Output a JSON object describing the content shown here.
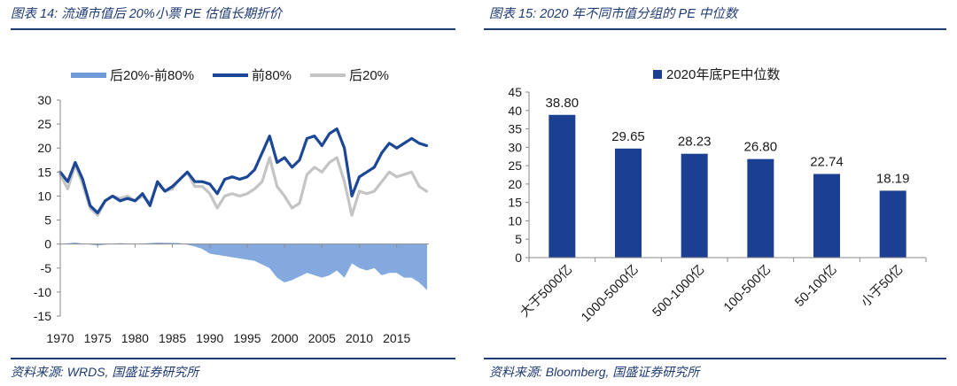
{
  "left": {
    "title": "图表 14:  流通市值后 20%小票 PE 估值长期折价",
    "source": "资料来源:  WRDS,  国盛证券研究所"
  },
  "right": {
    "title": "图表 15:  2020 年不同市值分组的 PE 中位数",
    "source": "资料来源:  Bloomberg,  国盛证券研究所"
  },
  "colors": {
    "header": "#1f3b73",
    "spread": "#6f9ad8",
    "top80": "#1b4796",
    "bottom20": "#c4c4c4",
    "bar": "#1b3f91"
  },
  "chart_data": [
    {
      "type": "line",
      "ylim": [
        -15,
        30
      ],
      "yticks": [
        "30",
        "25",
        "20",
        "15",
        "10",
        "5",
        "0",
        "-5",
        "-10",
        "-15"
      ],
      "xlim": [
        1970,
        2019.3
      ],
      "xticks": [
        "1970",
        "1975",
        "1980",
        "1985",
        "1990",
        "1995",
        "2000",
        "2005",
        "2010",
        "2015"
      ],
      "legend": "top",
      "series": [
        {
          "name": "后20%-前80%",
          "kind": "bar",
          "points": [
            [
              1970,
              0
            ],
            [
              1972,
              0.3
            ],
            [
              1975,
              -0.3
            ],
            [
              1978,
              0.2
            ],
            [
              1980,
              0
            ],
            [
              1983,
              0.3
            ],
            [
              1986,
              0.2
            ],
            [
              1988,
              -0.5
            ],
            [
              1989,
              -1
            ],
            [
              1990,
              -2
            ],
            [
              1992,
              -2.5
            ],
            [
              1994,
              -3
            ],
            [
              1996,
              -3.5
            ],
            [
              1998,
              -5
            ],
            [
              1999,
              -7
            ],
            [
              2000,
              -8
            ],
            [
              2001,
              -7.5
            ],
            [
              2003,
              -6
            ],
            [
              2005,
              -7
            ],
            [
              2006,
              -6.5
            ],
            [
              2007,
              -5.5
            ],
            [
              2008,
              -7
            ],
            [
              2009,
              -4
            ],
            [
              2010,
              -5
            ],
            [
              2011,
              -5.5
            ],
            [
              2012,
              -5
            ],
            [
              2013,
              -6.5
            ],
            [
              2014,
              -6
            ],
            [
              2015,
              -6
            ],
            [
              2016,
              -7
            ],
            [
              2017,
              -7
            ],
            [
              2018,
              -8
            ],
            [
              2019,
              -9.5
            ]
          ]
        },
        {
          "name": "前80%",
          "kind": "line",
          "points": [
            [
              1970,
              15
            ],
            [
              1971,
              13
            ],
            [
              1972,
              17
            ],
            [
              1973,
              13.5
            ],
            [
              1974,
              8
            ],
            [
              1975,
              6.5
            ],
            [
              1976,
              9
            ],
            [
              1977,
              10
            ],
            [
              1978,
              9
            ],
            [
              1979,
              9.5
            ],
            [
              1980,
              9
            ],
            [
              1981,
              10.5
            ],
            [
              1982,
              8
            ],
            [
              1983,
              13
            ],
            [
              1984,
              11
            ],
            [
              1985,
              12
            ],
            [
              1986,
              13.5
            ],
            [
              1987,
              15
            ],
            [
              1988,
              13
            ],
            [
              1989,
              13
            ],
            [
              1990,
              12.5
            ],
            [
              1991,
              10.5
            ],
            [
              1992,
              13.5
            ],
            [
              1993,
              14
            ],
            [
              1994,
              13.5
            ],
            [
              1995,
              14
            ],
            [
              1996,
              15.5
            ],
            [
              1997,
              19
            ],
            [
              1998,
              22.5
            ],
            [
              1999,
              17
            ],
            [
              2000,
              18
            ],
            [
              2001,
              16
            ],
            [
              2002,
              17.5
            ],
            [
              2003,
              22
            ],
            [
              2004,
              22.5
            ],
            [
              2005,
              20.5
            ],
            [
              2006,
              23
            ],
            [
              2007,
              24
            ],
            [
              2008,
              20
            ],
            [
              2009,
              10
            ],
            [
              2010,
              14
            ],
            [
              2011,
              15
            ],
            [
              2012,
              16
            ],
            [
              2013,
              19
            ],
            [
              2014,
              21
            ],
            [
              2015,
              20
            ],
            [
              2016,
              21
            ],
            [
              2017,
              22
            ],
            [
              2018,
              21
            ],
            [
              2019,
              20.5
            ]
          ]
        },
        {
          "name": "后20%",
          "kind": "line",
          "points": [
            [
              1970,
              14.5
            ],
            [
              1971,
              11.5
            ],
            [
              1972,
              16.5
            ],
            [
              1973,
              12.5
            ],
            [
              1974,
              7.5
            ],
            [
              1975,
              6
            ],
            [
              1976,
              9
            ],
            [
              1977,
              10
            ],
            [
              1978,
              9.5
            ],
            [
              1979,
              10
            ],
            [
              1980,
              9
            ],
            [
              1981,
              10
            ],
            [
              1982,
              8.5
            ],
            [
              1983,
              12.5
            ],
            [
              1984,
              11
            ],
            [
              1985,
              11.5
            ],
            [
              1986,
              13.5
            ],
            [
              1987,
              15
            ],
            [
              1988,
              12
            ],
            [
              1989,
              12
            ],
            [
              1990,
              10.5
            ],
            [
              1991,
              7.5
            ],
            [
              1992,
              10
            ],
            [
              1993,
              10.5
            ],
            [
              1994,
              10
            ],
            [
              1995,
              10.5
            ],
            [
              1996,
              11.5
            ],
            [
              1997,
              13
            ],
            [
              1998,
              18
            ],
            [
              1999,
              12
            ],
            [
              2000,
              10
            ],
            [
              2001,
              7.5
            ],
            [
              2002,
              8.5
            ],
            [
              2003,
              14.5
            ],
            [
              2004,
              16
            ],
            [
              2005,
              15
            ],
            [
              2006,
              17
            ],
            [
              2007,
              18
            ],
            [
              2008,
              13
            ],
            [
              2009,
              6
            ],
            [
              2010,
              11
            ],
            [
              2011,
              10.5
            ],
            [
              2012,
              11
            ],
            [
              2013,
              13
            ],
            [
              2014,
              15
            ],
            [
              2015,
              14
            ],
            [
              2016,
              14.5
            ],
            [
              2017,
              15
            ],
            [
              2018,
              12
            ],
            [
              2019,
              11
            ]
          ]
        }
      ]
    },
    {
      "type": "bar",
      "ylim": [
        0,
        45
      ],
      "yticks": [
        "45",
        "40",
        "35",
        "30",
        "25",
        "20",
        "15",
        "10",
        "5",
        "0"
      ],
      "legend": "top",
      "categories": [
        "大于5000亿",
        "1000-5000亿",
        "500-1000亿",
        "100-500亿",
        "50-100亿",
        "小于50亿"
      ],
      "series": [
        {
          "name": "2020年底PE中位数",
          "values": [
            38.8,
            29.65,
            28.23,
            26.8,
            22.74,
            18.19
          ]
        }
      ],
      "labels": [
        "38.80",
        "29.65",
        "28.23",
        "26.80",
        "22.74",
        "18.19"
      ]
    }
  ]
}
